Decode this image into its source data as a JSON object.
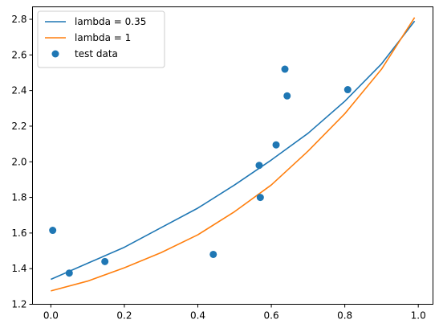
{
  "chart_data": {
    "type": "line",
    "title": "",
    "xlabel": "",
    "ylabel": "",
    "xlim": [
      -0.05,
      1.04
    ],
    "ylim": [
      1.2,
      2.87
    ],
    "xticks": [
      0.0,
      0.2,
      0.4,
      0.6,
      0.8,
      1.0
    ],
    "xtick_labels": [
      "0.0",
      "0.2",
      "0.4",
      "0.6",
      "0.8",
      "1.0"
    ],
    "yticks": [
      1.2,
      1.4,
      1.6,
      1.8,
      2.0,
      2.2,
      2.4,
      2.6,
      2.8
    ],
    "ytick_labels": [
      "1.2",
      "1.4",
      "1.6",
      "1.8",
      "2.0",
      "2.2",
      "2.4",
      "2.6",
      "2.8"
    ],
    "grid": false,
    "legend_position": "top-left",
    "series": [
      {
        "name": "lambda = 0.35",
        "kind": "line",
        "color": "#1f77b4",
        "x": [
          0.0,
          0.1,
          0.2,
          0.3,
          0.4,
          0.5,
          0.6,
          0.7,
          0.8,
          0.9,
          0.99
        ],
        "y": [
          1.34,
          1.43,
          1.52,
          1.63,
          1.74,
          1.87,
          2.01,
          2.16,
          2.34,
          2.55,
          2.79
        ]
      },
      {
        "name": "lambda = 1",
        "kind": "line",
        "color": "#ff7f0e",
        "x": [
          0.0,
          0.1,
          0.2,
          0.3,
          0.4,
          0.5,
          0.6,
          0.7,
          0.8,
          0.9,
          0.99
        ],
        "y": [
          1.275,
          1.33,
          1.405,
          1.49,
          1.59,
          1.72,
          1.87,
          2.06,
          2.27,
          2.52,
          2.81
        ]
      },
      {
        "name": "test data",
        "kind": "scatter",
        "color": "#1f77b4",
        "x": [
          0.005,
          0.05,
          0.147,
          0.442,
          0.567,
          0.57,
          0.613,
          0.637,
          0.643,
          0.808
        ],
        "y": [
          1.615,
          1.375,
          1.44,
          1.48,
          1.98,
          1.8,
          2.095,
          2.52,
          2.37,
          2.405
        ]
      }
    ]
  }
}
